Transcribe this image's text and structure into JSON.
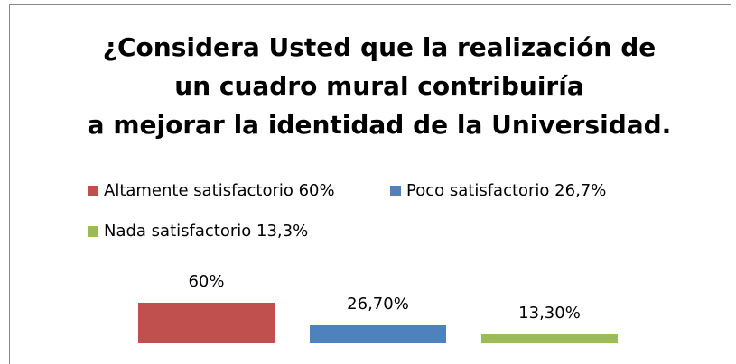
{
  "chart_data": {
    "type": "bar",
    "title": [
      "¿Considera Usted que la realización de",
      "un cuadro mural contribuiría",
      "a mejorar la identidad de la Universidad."
    ],
    "series": [
      {
        "name": "Altamente satisfactorio 60%",
        "color": "#c0504d",
        "values": [
          60
        ],
        "value_labels": [
          "60%"
        ]
      },
      {
        "name": "Poco satisfactorio 26,7%",
        "color": "#4f81bd",
        "values": [
          26.7
        ],
        "value_labels": [
          "26,70%"
        ]
      },
      {
        "name": "Nada satisfactorio 13,3%",
        "color": "#9bbb59",
        "values": [
          13.3
        ],
        "value_labels": [
          "13,30%"
        ]
      }
    ],
    "ylim": [
      0,
      100
    ],
    "legend": "top"
  }
}
